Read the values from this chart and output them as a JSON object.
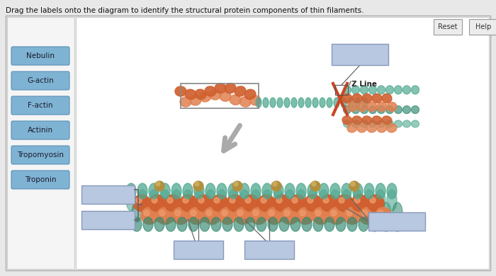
{
  "title": "Drag the labels onto the diagram to identify the structural protein components of thin filaments.",
  "bg_outer": "#e8e8e8",
  "bg_inner": "#ffffff",
  "bg_left": "#f0f0f0",
  "label_buttons": [
    "Nebulin",
    "G-actin",
    "F-actin",
    "Actinin",
    "Tropomyosin",
    "Troponin"
  ],
  "btn_color": "#7fb3d3",
  "btn_edge": "#5a90b8",
  "btn_text_color": "#1a1a2e",
  "reset_btn": "Reset",
  "help_btn": "Help",
  "z_line_label": "Z Line",
  "box_fill": "#b8c8e0",
  "box_edge": "#8899bb",
  "orange1": "#d06030",
  "orange2": "#e08050",
  "orange_hi": "#f0a070",
  "teal1": "#50a890",
  "teal2": "#308870",
  "gold": "#b09040",
  "gray_line": "#666666",
  "cross_color": "#cc3030"
}
